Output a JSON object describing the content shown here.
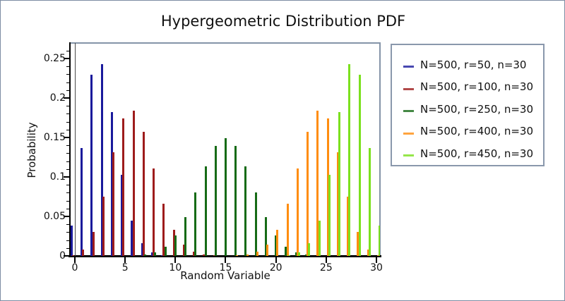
{
  "title": "Hypergeometric Distribution PDF",
  "frame_color": "#8494a8",
  "border_color": "#7d8ca3",
  "chart_data": {
    "type": "bar",
    "title": "Hypergeometric Distribution PDF",
    "xlabel": "Random Variable",
    "ylabel": "Probability",
    "xlim": [
      -0.5,
      30.4
    ],
    "ylim": [
      0,
      0.27
    ],
    "x_ticks": [
      0,
      5,
      10,
      15,
      20,
      25,
      30
    ],
    "x_tick_labels": [
      "0",
      "5",
      "10",
      "15",
      "20",
      "25",
      "30"
    ],
    "y_ticks": [
      0,
      0.05,
      0.1,
      0.15,
      0.2,
      0.25
    ],
    "y_tick_labels": [
      "0",
      "0.05",
      "0.1",
      "0.15",
      "0.2",
      "0.25"
    ],
    "y_minor_tick_step": 0.01,
    "grid": false,
    "legend_position": "right",
    "zero_axis_line_x": 0,
    "series": [
      {
        "name": "N=500, r=50, n=30",
        "color": "#1a1a9c",
        "points": [
          [
            0,
            0.0383
          ],
          [
            1,
            0.1363
          ],
          [
            2,
            0.2295
          ],
          [
            3,
            0.2431
          ],
          [
            4,
            0.1819
          ],
          [
            5,
            0.1024
          ],
          [
            6,
            0.045
          ],
          [
            7,
            0.0159
          ],
          [
            8,
            0.0046
          ],
          [
            9,
            0.0011
          ]
        ]
      },
      {
        "name": "N=500, r=100, n=30",
        "color": "#9e1c1c",
        "points": [
          [
            0,
            0.001
          ],
          [
            1,
            0.0079
          ],
          [
            2,
            0.0305
          ],
          [
            3,
            0.0748
          ],
          [
            4,
            0.131
          ],
          [
            5,
            0.1744
          ],
          [
            6,
            0.1836
          ],
          [
            7,
            0.157
          ],
          [
            8,
            0.111
          ],
          [
            9,
            0.0659
          ],
          [
            10,
            0.0331
          ],
          [
            11,
            0.0142
          ],
          [
            12,
            0.0053
          ],
          [
            13,
            0.0017
          ],
          [
            14,
            0.0005
          ]
        ]
      },
      {
        "name": "N=500, r=250, n=30",
        "color": "#166b16",
        "points": [
          [
            6,
            0.0004
          ],
          [
            7,
            0.0015
          ],
          [
            8,
            0.0046
          ],
          [
            9,
            0.0118
          ],
          [
            10,
            0.026
          ],
          [
            11,
            0.0492
          ],
          [
            12,
            0.0802
          ],
          [
            13,
            0.1134
          ],
          [
            14,
            0.1395
          ],
          [
            15,
            0.1494
          ],
          [
            16,
            0.1395
          ],
          [
            17,
            0.1134
          ],
          [
            18,
            0.0802
          ],
          [
            19,
            0.0492
          ],
          [
            20,
            0.026
          ],
          [
            21,
            0.0118
          ],
          [
            22,
            0.0046
          ],
          [
            23,
            0.0015
          ],
          [
            24,
            0.0004
          ]
        ]
      },
      {
        "name": "N=500, r=400, n=30",
        "color": "#ff8d0f",
        "points": [
          [
            16,
            0.0005
          ],
          [
            17,
            0.0017
          ],
          [
            18,
            0.0053
          ],
          [
            19,
            0.0142
          ],
          [
            20,
            0.0331
          ],
          [
            21,
            0.0659
          ],
          [
            22,
            0.111
          ],
          [
            23,
            0.157
          ],
          [
            24,
            0.1836
          ],
          [
            25,
            0.1744
          ],
          [
            26,
            0.131
          ],
          [
            27,
            0.0748
          ],
          [
            28,
            0.0305
          ],
          [
            29,
            0.0079
          ],
          [
            30,
            0.001
          ]
        ]
      },
      {
        "name": "N=500, r=450, n=30",
        "color": "#7be01e",
        "points": [
          [
            21,
            0.0011
          ],
          [
            22,
            0.0046
          ],
          [
            23,
            0.0159
          ],
          [
            24,
            0.045
          ],
          [
            25,
            0.1024
          ],
          [
            26,
            0.1819
          ],
          [
            27,
            0.2431
          ],
          [
            28,
            0.2295
          ],
          [
            29,
            0.1363
          ],
          [
            30,
            0.0383
          ]
        ]
      }
    ]
  },
  "legend": {
    "entries": [
      {
        "label": "N=500, r=50, n=30",
        "color": "#1a1a9c"
      },
      {
        "label": "N=500, r=100, n=30",
        "color": "#9e1c1c"
      },
      {
        "label": "N=500, r=250, n=30",
        "color": "#166b16"
      },
      {
        "label": "N=500, r=400, n=30",
        "color": "#ff8d0f"
      },
      {
        "label": "N=500, r=450, n=30",
        "color": "#7be01e"
      }
    ]
  }
}
